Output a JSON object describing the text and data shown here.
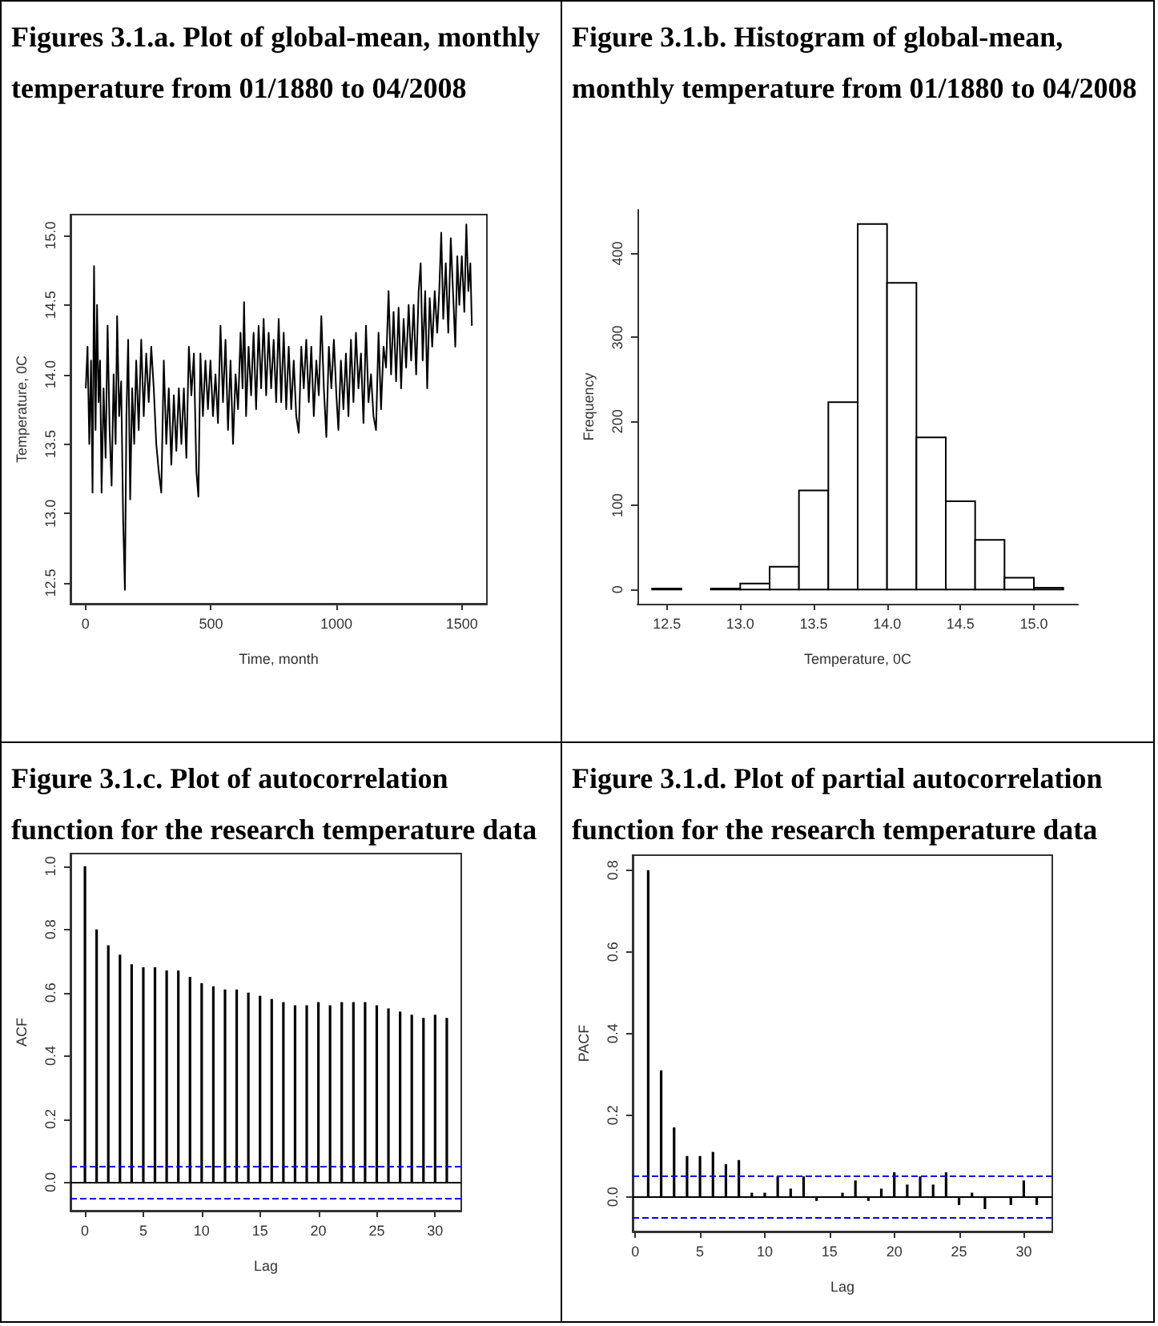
{
  "chart_data": [
    {
      "type": "line",
      "title": "Figures 3.1.a. Plot of global-mean, monthly temperature from 01/1880 to 04/2008",
      "xlabel": "Time, month",
      "ylabel": "Temperature, 0C",
      "color": "#000000",
      "marker": "none",
      "x": [
        1,
        8,
        15,
        22,
        28,
        34,
        40,
        46,
        52,
        58,
        64,
        72,
        80,
        88,
        96,
        104,
        112,
        120,
        126,
        134,
        142,
        150,
        157,
        163,
        170,
        178,
        186,
        194,
        202,
        212,
        222,
        232,
        242,
        252,
        262,
        272,
        282,
        292,
        302,
        312,
        322,
        332,
        342,
        352,
        362,
        372,
        382,
        392,
        402,
        412,
        422,
        432,
        442,
        450,
        458,
        468,
        478,
        488,
        498,
        508,
        518,
        528,
        538,
        548,
        558,
        568,
        578,
        588,
        598,
        608,
        618,
        626,
        632,
        640,
        650,
        660,
        670,
        680,
        690,
        700,
        710,
        720,
        730,
        740,
        750,
        760,
        770,
        780,
        790,
        800,
        810,
        820,
        830,
        840,
        850,
        860,
        870,
        880,
        890,
        900,
        910,
        920,
        930,
        940,
        950,
        960,
        970,
        980,
        990,
        1000,
        1008,
        1018,
        1028,
        1038,
        1048,
        1058,
        1068,
        1078,
        1088,
        1098,
        1108,
        1118,
        1128,
        1138,
        1148,
        1158,
        1168,
        1178,
        1188,
        1198,
        1208,
        1218,
        1228,
        1238,
        1248,
        1258,
        1268,
        1278,
        1288,
        1298,
        1308,
        1318,
        1328,
        1336,
        1344,
        1354,
        1362,
        1372,
        1382,
        1392,
        1402,
        1410,
        1418,
        1426,
        1436,
        1446,
        1456,
        1466,
        1474,
        1482,
        1490,
        1500,
        1510,
        1518,
        1526,
        1534,
        1540
      ],
      "values": [
        13.9,
        14.2,
        13.5,
        14.1,
        13.15,
        14.78,
        13.6,
        14.5,
        13.8,
        14.1,
        13.15,
        13.9,
        13.4,
        14.35,
        13.6,
        13.2,
        14.0,
        13.5,
        14.42,
        13.7,
        13.95,
        12.95,
        12.45,
        13.7,
        14.25,
        13.1,
        13.9,
        13.5,
        14.1,
        13.6,
        14.25,
        13.7,
        14.15,
        13.8,
        14.2,
        13.9,
        13.5,
        13.3,
        13.15,
        14.1,
        13.5,
        13.9,
        13.35,
        13.85,
        13.45,
        13.9,
        13.5,
        13.9,
        13.4,
        14.2,
        13.85,
        14.15,
        13.3,
        13.12,
        14.15,
        13.7,
        14.1,
        13.75,
        14.1,
        13.7,
        14.0,
        13.65,
        14.35,
        13.8,
        14.25,
        13.6,
        14.1,
        13.5,
        14.0,
        13.75,
        14.3,
        13.9,
        14.52,
        13.7,
        14.2,
        13.85,
        14.3,
        13.75,
        14.35,
        13.9,
        14.4,
        13.85,
        14.3,
        13.9,
        14.25,
        13.8,
        14.4,
        13.8,
        14.3,
        13.75,
        14.2,
        13.75,
        14.1,
        13.7,
        13.58,
        14.2,
        13.9,
        14.25,
        13.8,
        14.2,
        13.7,
        14.1,
        13.85,
        14.42,
        13.9,
        13.55,
        14.2,
        13.9,
        14.25,
        13.85,
        13.6,
        14.1,
        13.75,
        14.15,
        13.7,
        14.25,
        13.8,
        14.3,
        13.9,
        14.15,
        13.65,
        14.35,
        13.8,
        14.0,
        13.7,
        13.6,
        14.3,
        13.75,
        14.2,
        14.05,
        14.6,
        14.0,
        14.45,
        13.95,
        14.48,
        13.9,
        14.4,
        14.05,
        14.5,
        14.1,
        14.5,
        14.0,
        14.6,
        14.8,
        14.1,
        14.6,
        13.9,
        14.55,
        14.2,
        14.6,
        14.3,
        14.6,
        15.02,
        14.4,
        14.8,
        14.3,
        14.98,
        14.55,
        14.2,
        14.85,
        14.5,
        14.85,
        14.45,
        15.08,
        14.6,
        14.8,
        14.35
      ],
      "xlim": [
        -60,
        1600
      ],
      "ylim": [
        12.35,
        15.15
      ],
      "xticks": [
        0,
        500,
        1000,
        1500
      ],
      "yticks": [
        {
          "value": 12.5,
          "label": "12.5"
        },
        {
          "value": 13,
          "label": "13.0"
        },
        {
          "value": 13.5,
          "label": "13.5"
        },
        {
          "value": 14,
          "label": "14.0"
        },
        {
          "value": 14.5,
          "label": "14.5"
        },
        {
          "value": 15,
          "label": "15.0"
        }
      ]
    },
    {
      "type": "histogram",
      "title": "Figure 3.1.b. Histogram of global-mean, monthly temperature from 01/1880 to 04/2008",
      "xlabel": "Temperature, 0C",
      "ylabel": "Frequency",
      "color": "#ffffff",
      "bins": [
        12.4,
        12.6,
        12.8,
        13.0,
        13.2,
        13.4,
        13.6,
        13.8,
        14.0,
        14.2,
        14.4,
        14.6,
        14.8,
        15.0,
        15.2
      ],
      "values": [
        1,
        0,
        1,
        7,
        27,
        118,
        223,
        435,
        365,
        181,
        105,
        59,
        14,
        2
      ],
      "xlim": [
        12.3,
        15.3
      ],
      "ylim": [
        -17,
        452
      ],
      "xticks": [
        {
          "value": 12.5,
          "label": "12.5"
        },
        {
          "value": 13,
          "label": "13.0"
        },
        {
          "value": 13.5,
          "label": "13.5"
        },
        {
          "value": 14,
          "label": "14.0"
        },
        {
          "value": 14.5,
          "label": "14.5"
        },
        {
          "value": 15,
          "label": "15.0"
        }
      ],
      "yticks": [
        0,
        100,
        200,
        300,
        400
      ]
    },
    {
      "type": "bar",
      "title": "Figure 3.1.c. Plot of autocorrelation function for the research temperature data",
      "xlabel": "Lag",
      "ylabel": "ACF",
      "color": "#000000",
      "x": [
        0,
        1,
        2,
        3,
        4,
        5,
        6,
        7,
        8,
        9,
        10,
        11,
        12,
        13,
        14,
        15,
        16,
        17,
        18,
        19,
        20,
        21,
        22,
        23,
        24,
        25,
        26,
        27,
        28,
        29,
        30,
        31
      ],
      "values": [
        1.0,
        0.8,
        0.75,
        0.72,
        0.69,
        0.68,
        0.68,
        0.67,
        0.67,
        0.65,
        0.63,
        0.62,
        0.61,
        0.61,
        0.6,
        0.59,
        0.58,
        0.57,
        0.56,
        0.56,
        0.57,
        0.56,
        0.57,
        0.57,
        0.57,
        0.56,
        0.55,
        0.54,
        0.53,
        0.52,
        0.53,
        0.52
      ],
      "xlim": [
        -1.24,
        32.24
      ],
      "ylim": [
        -0.09,
        1.04
      ],
      "xticks": [
        0,
        5,
        10,
        15,
        20,
        25,
        30
      ],
      "yticks": [
        {
          "value": 0,
          "label": "0.0"
        },
        {
          "value": 0.2,
          "label": "0.2"
        },
        {
          "value": 0.4,
          "label": "0.4"
        },
        {
          "value": 0.6,
          "label": "0.6"
        },
        {
          "value": 0.8,
          "label": "0.8"
        },
        {
          "value": 1,
          "label": "1.0"
        }
      ],
      "ref_lines": [
        {
          "axis": "y",
          "value": 0,
          "color": "#000000",
          "line_style": "solid"
        },
        {
          "axis": "y",
          "value": 0.05,
          "color": "#0000ff",
          "line_style": "dashed"
        },
        {
          "axis": "y",
          "value": -0.05,
          "color": "#0000ff",
          "line_style": "dashed"
        }
      ]
    },
    {
      "type": "bar",
      "title": "Figure 3.1.d. Plot of partial autocorrelation function for the research temperature data",
      "xlabel": "Lag",
      "ylabel": "PACF",
      "color": "#000000",
      "x": [
        1,
        2,
        3,
        4,
        5,
        6,
        7,
        8,
        9,
        10,
        11,
        12,
        13,
        14,
        15,
        16,
        17,
        18,
        19,
        20,
        21,
        22,
        23,
        24,
        25,
        26,
        27,
        28,
        29,
        30,
        31
      ],
      "values": [
        0.8,
        0.31,
        0.17,
        0.1,
        0.1,
        0.11,
        0.08,
        0.09,
        0.01,
        0.01,
        0.05,
        0.02,
        0.05,
        -0.01,
        0.0,
        0.01,
        0.04,
        -0.01,
        0.02,
        0.06,
        0.03,
        0.05,
        0.03,
        0.06,
        -0.02,
        0.01,
        -0.03,
        0.0,
        -0.02,
        0.04,
        -0.02
      ],
      "xlim": [
        -0.2,
        32.2
      ],
      "ylim": [
        -0.085,
        0.837
      ],
      "xticks": [
        0,
        5,
        10,
        15,
        20,
        25,
        30
      ],
      "yticks": [
        {
          "value": 0,
          "label": "0.0"
        },
        {
          "value": 0.2,
          "label": "0.2"
        },
        {
          "value": 0.4,
          "label": "0.4"
        },
        {
          "value": 0.6,
          "label": "0.6"
        },
        {
          "value": 0.8,
          "label": "0.8"
        }
      ],
      "ref_lines": [
        {
          "axis": "y",
          "value": 0,
          "color": "#000000",
          "line_style": "solid"
        },
        {
          "axis": "y",
          "value": 0.05,
          "color": "#0000ff",
          "line_style": "dashed"
        },
        {
          "axis": "y",
          "value": -0.05,
          "color": "#0000ff",
          "line_style": "dashed"
        }
      ]
    }
  ]
}
